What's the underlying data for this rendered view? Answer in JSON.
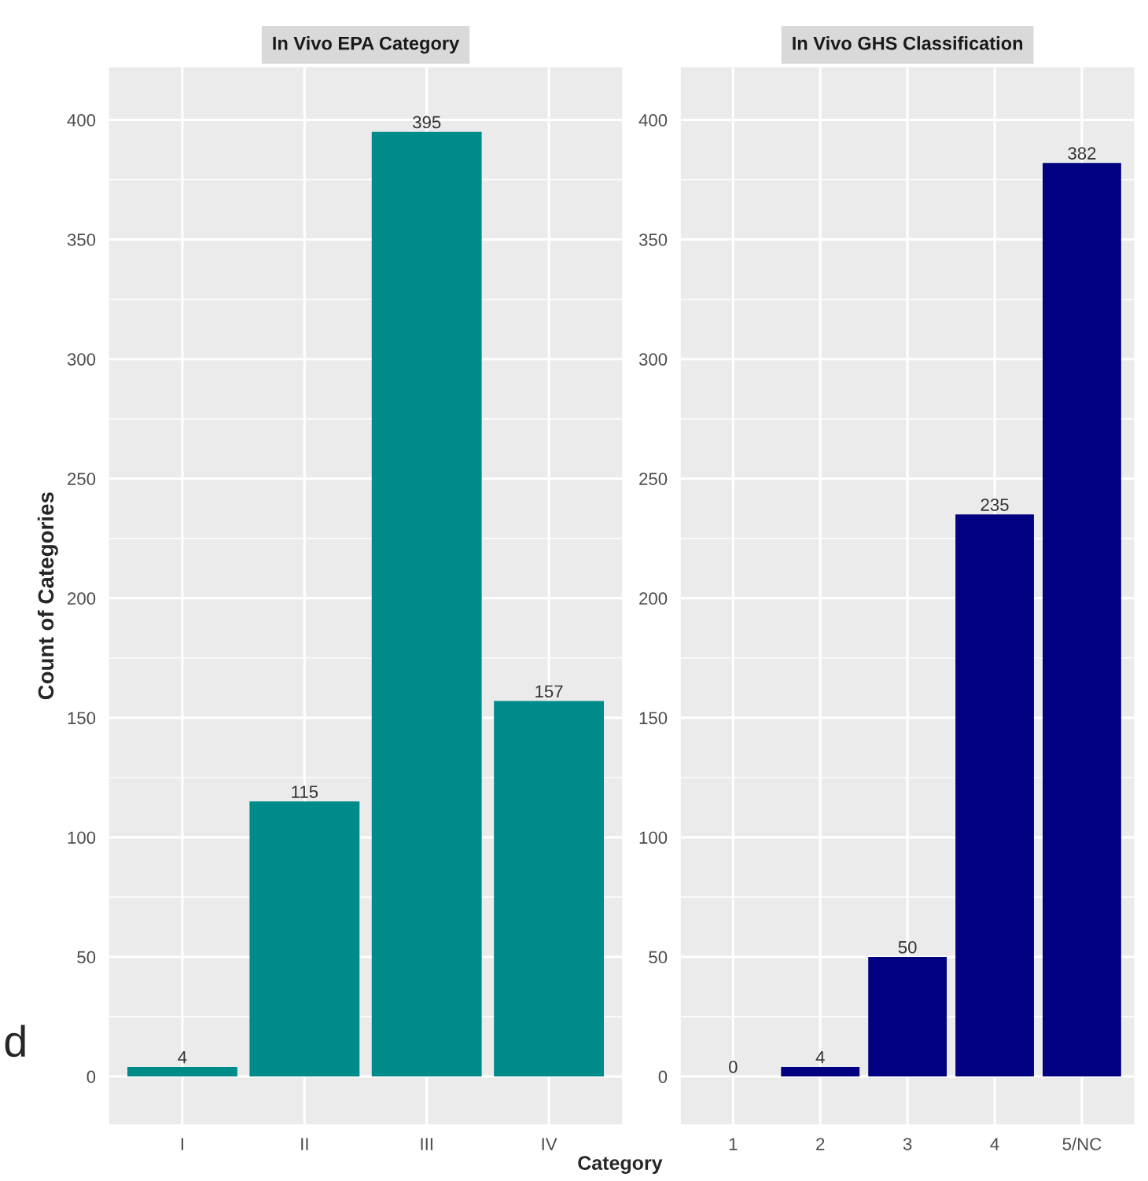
{
  "chart_data": [
    {
      "type": "bar",
      "title": "In Vivo EPA Category",
      "xlabel": "Category",
      "ylabel": "Count of Categories",
      "categories": [
        "I",
        "II",
        "III",
        "IV"
      ],
      "values": [
        4,
        115,
        395,
        157
      ],
      "color": "#008b8b",
      "data_labels": true,
      "ylim": [
        -20,
        422
      ],
      "yticks": [
        0,
        50,
        100,
        150,
        200,
        250,
        300,
        350,
        400
      ],
      "grid": true,
      "annotations": [
        "d"
      ]
    },
    {
      "type": "bar",
      "title": "In Vivo GHS Classification",
      "categories": [
        "1",
        "2",
        "3",
        "4",
        "5/NC"
      ],
      "values": [
        0,
        4,
        50,
        235,
        382
      ],
      "color": "#000080",
      "data_labels": true,
      "ylim": [
        -20,
        422
      ],
      "yticks": [
        0,
        50,
        100,
        150,
        200,
        250,
        300,
        350,
        400
      ],
      "grid": true
    }
  ]
}
